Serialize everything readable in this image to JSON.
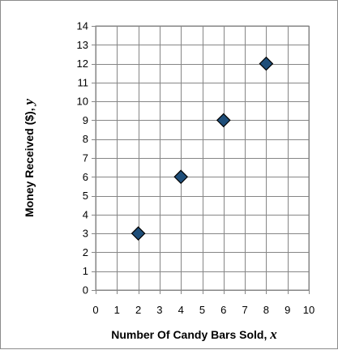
{
  "chart_data": {
    "type": "scatter",
    "title": "",
    "xlabel": "Number Of Candy Bars Sold, ",
    "xlabel_var": "x",
    "ylabel": "Money Received ($), ",
    "ylabel_var": "y",
    "xlim": [
      0,
      10
    ],
    "ylim": [
      0,
      14
    ],
    "x_ticks": [
      0,
      1,
      2,
      3,
      4,
      5,
      6,
      7,
      8,
      9,
      10
    ],
    "y_ticks": [
      0,
      1,
      2,
      3,
      4,
      5,
      6,
      7,
      8,
      9,
      10,
      11,
      12,
      13,
      14
    ],
    "grid": true,
    "legend": "none",
    "marker": "diamond",
    "marker_fill": "#1f4e79",
    "marker_stroke": "#000000",
    "points": [
      {
        "x": 2,
        "y": 3
      },
      {
        "x": 4,
        "y": 6
      },
      {
        "x": 6,
        "y": 9
      },
      {
        "x": 8,
        "y": 12
      }
    ]
  }
}
